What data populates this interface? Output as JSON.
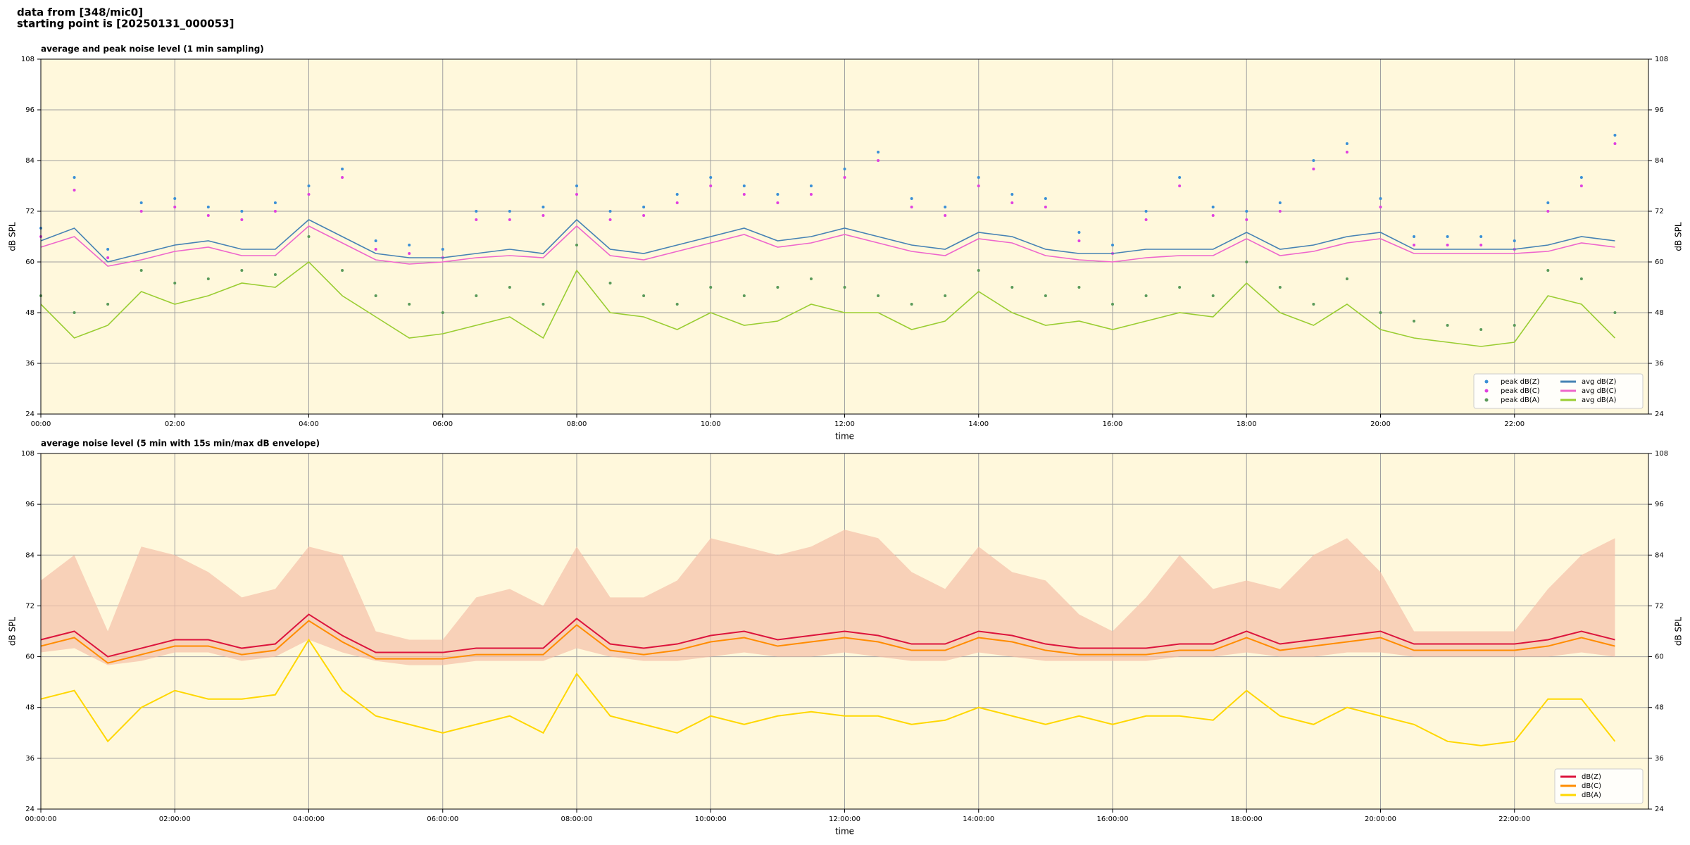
{
  "header": {
    "line1": "data from [348/mic0]",
    "line2": "starting point is [20250131_000053]"
  },
  "chart_data": [
    {
      "type": "line",
      "title": "average and peak noise level (1 min sampling)",
      "xlabel": "time",
      "ylabel": "dB SPL",
      "x": [
        0,
        0.5,
        1,
        1.5,
        2,
        2.5,
        3,
        3.5,
        4,
        4.5,
        5,
        5.5,
        6,
        6.5,
        7,
        7.5,
        8,
        8.5,
        9,
        9.5,
        10,
        10.5,
        11,
        11.5,
        12,
        12.5,
        13,
        13.5,
        14,
        14.5,
        15,
        15.5,
        16,
        16.5,
        17,
        17.5,
        18,
        18.5,
        19,
        19.5,
        20,
        20.5,
        21,
        21.5,
        22,
        22.5,
        23,
        23.5
      ],
      "xlim": [
        0,
        24
      ],
      "xticks": [
        {
          "value": 0,
          "label": "00:00"
        },
        {
          "value": 2,
          "label": "02:00"
        },
        {
          "value": 4,
          "label": "04:00"
        },
        {
          "value": 6,
          "label": "06:00"
        },
        {
          "value": 8,
          "label": "08:00"
        },
        {
          "value": 10,
          "label": "10:00"
        },
        {
          "value": 12,
          "label": "12:00"
        },
        {
          "value": 14,
          "label": "14:00"
        },
        {
          "value": 16,
          "label": "16:00"
        },
        {
          "value": 18,
          "label": "18:00"
        },
        {
          "value": 20,
          "label": "20:00"
        },
        {
          "value": 22,
          "label": "22:00"
        }
      ],
      "ylim": [
        24,
        108
      ],
      "yticks": [
        24,
        36,
        48,
        60,
        72,
        84,
        96,
        108
      ],
      "grid": true,
      "background": "#fff8dc",
      "legend": "lower right",
      "legend_columns": 2,
      "series": [
        {
          "name": "peak dB(Z)",
          "kind": "scatter",
          "color": "#3a8fd6",
          "values": [
            68,
            80,
            63,
            74,
            75,
            73,
            72,
            74,
            78,
            82,
            65,
            64,
            63,
            72,
            72,
            73,
            78,
            72,
            73,
            76,
            80,
            78,
            76,
            78,
            82,
            86,
            75,
            73,
            80,
            76,
            75,
            67,
            64,
            72,
            80,
            73,
            72,
            74,
            84,
            88,
            75,
            66,
            66,
            66,
            65,
            74,
            80,
            90
          ]
        },
        {
          "name": "peak dB(C)",
          "kind": "scatter",
          "color": "#e040e0",
          "values": [
            66,
            77,
            61,
            72,
            73,
            71,
            70,
            72,
            76,
            80,
            63,
            62,
            61,
            70,
            70,
            71,
            76,
            70,
            71,
            74,
            78,
            76,
            74,
            76,
            80,
            84,
            73,
            71,
            78,
            74,
            73,
            65,
            62,
            70,
            78,
            71,
            70,
            72,
            82,
            86,
            73,
            64,
            64,
            64,
            63,
            72,
            78,
            88
          ]
        },
        {
          "name": "peak dB(A)",
          "kind": "scatter",
          "color": "#5a9a5a",
          "values": [
            52,
            48,
            50,
            58,
            55,
            56,
            58,
            57,
            66,
            58,
            52,
            50,
            48,
            52,
            54,
            50,
            64,
            55,
            52,
            50,
            54,
            52,
            54,
            56,
            54,
            52,
            50,
            52,
            58,
            54,
            52,
            54,
            50,
            52,
            54,
            52,
            60,
            54,
            50,
            56,
            48,
            46,
            45,
            44,
            45,
            58,
            56,
            48
          ]
        },
        {
          "name": "avg dB(Z)",
          "kind": "line",
          "color": "#4682b4",
          "values": [
            65,
            68,
            60,
            62,
            64,
            65,
            63,
            63,
            70,
            66,
            62,
            61,
            61,
            62,
            63,
            62,
            70,
            63,
            62,
            64,
            66,
            68,
            65,
            66,
            68,
            66,
            64,
            63,
            67,
            66,
            63,
            62,
            62,
            63,
            63,
            63,
            67,
            63,
            64,
            66,
            67,
            63,
            63,
            63,
            63,
            64,
            66,
            65
          ]
        },
        {
          "name": "avg dB(C)",
          "kind": "line",
          "color": "#ee66cc",
          "values": [
            63.5,
            66,
            59,
            60.5,
            62.5,
            63.5,
            61.5,
            61.5,
            68.5,
            64.5,
            60.5,
            59.5,
            60,
            61,
            61.5,
            61,
            68.5,
            61.5,
            60.5,
            62.5,
            64.5,
            66.5,
            63.5,
            64.5,
            66.5,
            64.5,
            62.5,
            61.5,
            65.5,
            64.5,
            61.5,
            60.5,
            60,
            61,
            61.5,
            61.5,
            65.5,
            61.5,
            62.5,
            64.5,
            65.5,
            62,
            62,
            62,
            62,
            62.5,
            64.5,
            63.5
          ]
        },
        {
          "name": "avg dB(A)",
          "kind": "line",
          "color": "#9acd32",
          "values": [
            50,
            42,
            45,
            53,
            50,
            52,
            55,
            54,
            60,
            52,
            47,
            42,
            43,
            45,
            47,
            42,
            58,
            48,
            47,
            44,
            48,
            45,
            46,
            50,
            48,
            48,
            44,
            46,
            53,
            48,
            45,
            46,
            44,
            46,
            48,
            47,
            55,
            48,
            45,
            50,
            44,
            42,
            41,
            40,
            41,
            52,
            50,
            42
          ]
        }
      ]
    },
    {
      "type": "line",
      "title": "average noise level (5 min with 15s min/max dB envelope)",
      "xlabel": "time",
      "ylabel": "dB SPL",
      "x": [
        0,
        0.5,
        1,
        1.5,
        2,
        2.5,
        3,
        3.5,
        4,
        4.5,
        5,
        5.5,
        6,
        6.5,
        7,
        7.5,
        8,
        8.5,
        9,
        9.5,
        10,
        10.5,
        11,
        11.5,
        12,
        12.5,
        13,
        13.5,
        14,
        14.5,
        15,
        15.5,
        16,
        16.5,
        17,
        17.5,
        18,
        18.5,
        19,
        19.5,
        20,
        20.5,
        21,
        21.5,
        22,
        22.5,
        23,
        23.5
      ],
      "xlim": [
        0,
        24
      ],
      "xticks": [
        {
          "value": 0,
          "label": "00:00:00"
        },
        {
          "value": 2,
          "label": "02:00:00"
        },
        {
          "value": 4,
          "label": "04:00:00"
        },
        {
          "value": 6,
          "label": "06:00:00"
        },
        {
          "value": 8,
          "label": "08:00:00"
        },
        {
          "value": 10,
          "label": "10:00:00"
        },
        {
          "value": 12,
          "label": "12:00:00"
        },
        {
          "value": 14,
          "label": "14:00:00"
        },
        {
          "value": 16,
          "label": "16:00:00"
        },
        {
          "value": 18,
          "label": "18:00:00"
        },
        {
          "value": 20,
          "label": "20:00:00"
        },
        {
          "value": 22,
          "label": "22:00:00"
        }
      ],
      "ylim": [
        24,
        108
      ],
      "yticks": [
        24,
        36,
        48,
        60,
        72,
        84,
        96,
        108
      ],
      "grid": true,
      "background": "#fff8dc",
      "legend": "lower right",
      "legend_columns": 1,
      "envelope": {
        "color": "#f5c0a8",
        "upper": [
          78,
          84,
          66,
          86,
          84,
          80,
          74,
          76,
          86,
          84,
          66,
          64,
          64,
          74,
          76,
          72,
          86,
          74,
          74,
          78,
          88,
          86,
          84,
          86,
          90,
          88,
          80,
          76,
          86,
          80,
          78,
          70,
          66,
          74,
          84,
          76,
          78,
          76,
          84,
          88,
          80,
          66,
          66,
          66,
          66,
          76,
          84,
          88
        ],
        "lower": [
          61,
          62,
          58,
          59,
          61,
          61,
          59,
          60,
          64,
          61,
          59,
          58,
          58,
          59,
          59,
          59,
          62,
          60,
          59,
          59,
          60,
          61,
          60,
          60,
          61,
          60,
          59,
          59,
          61,
          60,
          59,
          59,
          59,
          59,
          60,
          60,
          61,
          60,
          60,
          61,
          61,
          60,
          60,
          60,
          60,
          60,
          61,
          60
        ]
      },
      "series": [
        {
          "name": "dB(Z)",
          "kind": "line",
          "color": "#dc143c",
          "values": [
            64,
            66,
            60,
            62,
            64,
            64,
            62,
            63,
            70,
            65,
            61,
            61,
            61,
            62,
            62,
            62,
            69,
            63,
            62,
            63,
            65,
            66,
            64,
            65,
            66,
            65,
            63,
            63,
            66,
            65,
            63,
            62,
            62,
            62,
            63,
            63,
            66,
            63,
            64,
            65,
            66,
            63,
            63,
            63,
            63,
            64,
            66,
            64
          ]
        },
        {
          "name": "dB(C)",
          "kind": "line",
          "color": "#ff8c00",
          "values": [
            62.5,
            64.5,
            58.5,
            60.5,
            62.5,
            62.5,
            60.5,
            61.5,
            68.5,
            63.5,
            59.5,
            59.5,
            59.5,
            60.5,
            60.5,
            60.5,
            67.5,
            61.5,
            60.5,
            61.5,
            63.5,
            64.5,
            62.5,
            63.5,
            64.5,
            63.5,
            61.5,
            61.5,
            64.5,
            63.5,
            61.5,
            60.5,
            60.5,
            60.5,
            61.5,
            61.5,
            64.5,
            61.5,
            62.5,
            63.5,
            64.5,
            61.5,
            61.5,
            61.5,
            61.5,
            62.5,
            64.5,
            62.5
          ]
        },
        {
          "name": "dB(A)",
          "kind": "line",
          "color": "#ffd700",
          "values": [
            50,
            52,
            40,
            48,
            52,
            50,
            50,
            51,
            64,
            52,
            46,
            44,
            42,
            44,
            46,
            42,
            56,
            46,
            44,
            42,
            46,
            44,
            46,
            47,
            46,
            46,
            44,
            45,
            48,
            46,
            44,
            46,
            44,
            46,
            46,
            45,
            52,
            46,
            44,
            48,
            46,
            44,
            40,
            39,
            40,
            50,
            50,
            40
          ]
        }
      ]
    }
  ]
}
